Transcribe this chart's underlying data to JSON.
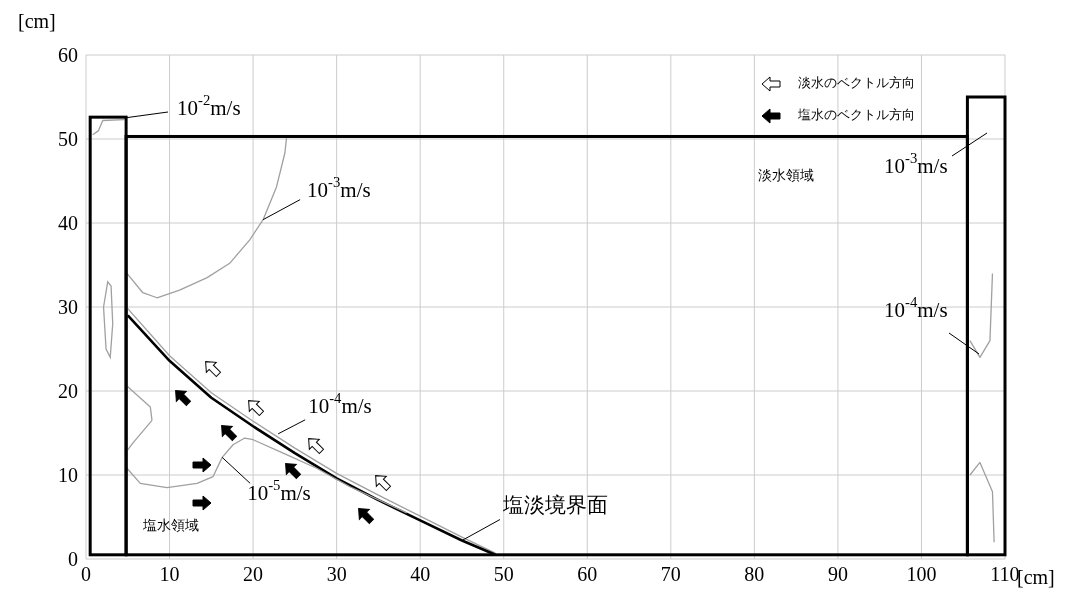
{
  "chart_data": {
    "type": "line",
    "xlabel": "[cm]",
    "ylabel": "[cm]",
    "xlim": [
      0,
      110
    ],
    "xticks": [
      0,
      10,
      20,
      30,
      40,
      50,
      60,
      70,
      80,
      90,
      100,
      110
    ],
    "ylim": [
      0,
      60
    ],
    "yticks": [
      0,
      10,
      20,
      30,
      40,
      50,
      60
    ],
    "grid": true,
    "series": [
      {
        "color": "#a0a0a0",
        "x": [
          5,
          10,
          15,
          20,
          25,
          30,
          35,
          40,
          45,
          49
        ],
        "values": [
          29.8,
          24.2,
          19.8,
          16.4,
          13.2,
          10.2,
          7.6,
          5.1,
          2.6,
          0.7
        ]
      },
      {
        "color": "#000000",
        "x": [
          5,
          10,
          15,
          20,
          25,
          30,
          35,
          40,
          45,
          49
        ],
        "values": [
          29,
          23.6,
          19.2,
          15.8,
          12.6,
          9.6,
          7,
          4.6,
          2.2,
          0.5
        ]
      },
      {
        "color": "#a0a0a0",
        "x": [
          4.9,
          6.8,
          8.5,
          11.2,
          14.5,
          17.2,
          19.6,
          21.2,
          22.8,
          23.8,
          24
        ],
        "values": [
          34,
          31.7,
          31.1,
          32,
          33.5,
          35.2,
          38,
          40.4,
          44.3,
          48.3,
          50.1
        ]
      },
      {
        "color": "#a0a0a0",
        "x": [
          5,
          7.7,
          7.9
        ],
        "values": [
          20.5,
          18.1,
          16.5
        ]
      },
      {
        "color": "#a0a0a0",
        "x": [
          5,
          5.6,
          7.9
        ],
        "values": [
          13,
          13.8,
          16.5
        ]
      },
      {
        "color": "#a0a0a0",
        "x": [
          4.9,
          6.5,
          9.7,
          13.3,
          15.2,
          16.3,
          17.6,
          19,
          20,
          23.6,
          27.6,
          31.6,
          38.4
        ],
        "values": [
          10.8,
          9,
          8.5,
          9,
          9.8,
          12.1,
          13.6,
          14.4,
          14.2,
          12.6,
          10.8,
          8.6,
          5.5
        ]
      },
      {
        "color": "#a0a0a0",
        "x": [
          0.8,
          1.5,
          2,
          4.6
        ],
        "values": [
          50.5,
          51,
          52.2,
          52.3
        ]
      },
      {
        "color": "#a0a0a0",
        "x": [
          105.8,
          107,
          108.2,
          108.5
        ],
        "values": [
          26,
          24,
          26,
          34
        ]
      },
      {
        "color": "#a0a0a0",
        "x": [
          105.8,
          107,
          108.5,
          108.7
        ],
        "values": [
          10,
          11.5,
          8,
          2
        ]
      }
    ],
    "annotations": [
      "10$^{-2}$m/s",
      {
        "text": "10$^{-3}$m/s",
        "x": 21.2,
        "y": 40.4
      },
      {
        "text": "10$^{-4}$m/s",
        "x": 23,
        "y": 14.9
      },
      {
        "text": "10$^{-5}$m/s",
        "x": 16.3,
        "y": 12.1
      },
      "10$^{-3}$m/s",
      "10$^{-4}$m/s",
      {
        "text": "塩淡境界面",
        "x": 45,
        "y": 2.2
      },
      "淡水領域",
      "塩水領域",
      "淡水のベクトル方向",
      "塩水のベクトル方向"
    ]
  }
}
